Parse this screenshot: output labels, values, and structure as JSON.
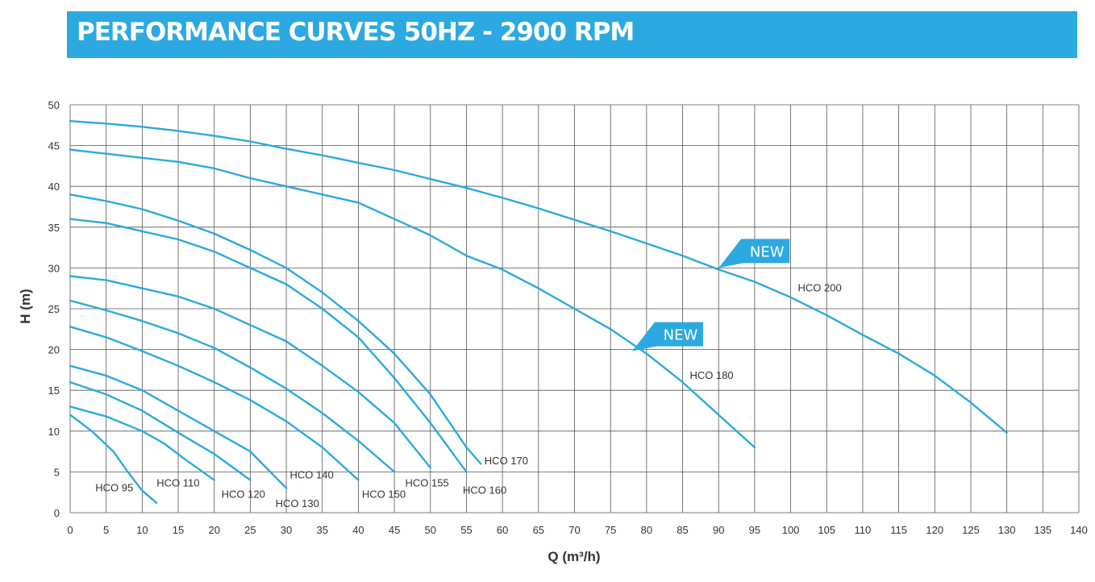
{
  "header": {
    "title": "PERFORMANCE CURVES 50HZ - 2900 RPM"
  },
  "colors": {
    "banner": "#2ca9e1",
    "curve": "#2ca9e1",
    "grid": "#555555"
  },
  "chart_data": {
    "type": "line",
    "title": "PERFORMANCE CURVES 50HZ - 2900 RPM",
    "xlabel": "Q (m³/h)",
    "ylabel": "H (m)",
    "xlim": [
      0,
      140
    ],
    "ylim": [
      0,
      50
    ],
    "xticks": [
      0,
      5,
      10,
      15,
      20,
      25,
      30,
      35,
      40,
      45,
      50,
      55,
      60,
      65,
      70,
      75,
      80,
      85,
      90,
      95,
      100,
      105,
      110,
      115,
      120,
      125,
      130,
      135,
      140
    ],
    "yticks": [
      0,
      5,
      10,
      15,
      20,
      25,
      30,
      35,
      40,
      45,
      50
    ],
    "grid": true,
    "series": [
      {
        "name": "HCO 95",
        "x": [
          0,
          3,
          6,
          8,
          10,
          12
        ],
        "y": [
          12,
          10,
          7.5,
          5,
          2.7,
          1.2
        ]
      },
      {
        "name": "HCO 110",
        "x": [
          0,
          5,
          10,
          13,
          16,
          20
        ],
        "y": [
          13,
          11.8,
          10,
          8.5,
          6.5,
          4
        ]
      },
      {
        "name": "HCO 120",
        "x": [
          0,
          5,
          10,
          15,
          20,
          25
        ],
        "y": [
          16,
          14.5,
          12.5,
          9.8,
          7.2,
          4
        ]
      },
      {
        "name": "HCO 130",
        "x": [
          0,
          5,
          10,
          15,
          20,
          25,
          30
        ],
        "y": [
          18,
          16.8,
          15,
          12.5,
          10,
          7.5,
          3
        ]
      },
      {
        "name": "HCO 140",
        "x": [
          0,
          5,
          10,
          15,
          20,
          25,
          30,
          35,
          40
        ],
        "y": [
          22.8,
          21.5,
          19.8,
          18,
          16,
          13.8,
          11.2,
          8,
          4
        ]
      },
      {
        "name": "HCO 150",
        "x": [
          0,
          5,
          10,
          15,
          20,
          25,
          30,
          35,
          40,
          45
        ],
        "y": [
          26,
          24.8,
          23.5,
          22,
          20.2,
          17.8,
          15.2,
          12.2,
          8.8,
          5
        ]
      },
      {
        "name": "HCO 155",
        "x": [
          0,
          5,
          10,
          15,
          20,
          25,
          30,
          35,
          40,
          45,
          50
        ],
        "y": [
          29,
          28.5,
          27.5,
          26.5,
          25,
          23,
          21,
          18,
          14.8,
          11,
          5.5
        ]
      },
      {
        "name": "HCO 160",
        "x": [
          0,
          5,
          10,
          15,
          20,
          25,
          30,
          35,
          40,
          45,
          50,
          55
        ],
        "y": [
          36,
          35.5,
          34.5,
          33.5,
          32,
          30,
          28,
          25,
          21.5,
          16.5,
          11,
          5
        ]
      },
      {
        "name": "HCO 170",
        "x": [
          0,
          5,
          10,
          15,
          20,
          25,
          30,
          35,
          40,
          45,
          50,
          55,
          57
        ],
        "y": [
          39,
          38.2,
          37.2,
          35.8,
          34.2,
          32.2,
          30,
          27,
          23.5,
          19.5,
          14.5,
          8,
          6
        ]
      },
      {
        "name": "HCO 180",
        "x": [
          0,
          5,
          10,
          15,
          20,
          25,
          30,
          35,
          40,
          45,
          50,
          55,
          60,
          65,
          70,
          75,
          80,
          85,
          90,
          95
        ],
        "y": [
          44.5,
          44,
          43.5,
          43,
          42.2,
          41,
          40,
          39,
          38,
          36,
          34,
          31.5,
          29.8,
          27.5,
          25,
          22.5,
          19.5,
          16,
          12,
          8
        ]
      },
      {
        "name": "HCO 200",
        "x": [
          0,
          5,
          10,
          15,
          20,
          25,
          30,
          35,
          40,
          45,
          50,
          55,
          60,
          65,
          70,
          75,
          80,
          85,
          90,
          95,
          100,
          105,
          110,
          115,
          120,
          125,
          130
        ],
        "y": [
          48,
          47.7,
          47.3,
          46.8,
          46.2,
          45.5,
          44.6,
          43.8,
          42.9,
          42,
          40.9,
          39.8,
          38.6,
          37.3,
          35.9,
          34.5,
          33,
          31.5,
          29.8,
          28.3,
          26.4,
          24.2,
          21.8,
          19.5,
          16.8,
          13.5,
          9.8
        ]
      }
    ],
    "curve_labels": [
      {
        "text": "HCO 95",
        "x": 3.5,
        "y": 3.0
      },
      {
        "text": "HCO 110",
        "x": 12,
        "y": 3.6
      },
      {
        "text": "HCO 120",
        "x": 21,
        "y": 2.2
      },
      {
        "text": "HCO 130",
        "x": 28.5,
        "y": 1.1
      },
      {
        "text": "HCO 140",
        "x": 30.5,
        "y": 4.6
      },
      {
        "text": "HCO 150",
        "x": 40.5,
        "y": 2.2
      },
      {
        "text": "HCO 155",
        "x": 46.5,
        "y": 3.6
      },
      {
        "text": "HCO 160",
        "x": 54.5,
        "y": 2.7
      },
      {
        "text": "HCO 170",
        "x": 57.5,
        "y": 6.3
      },
      {
        "text": "HCO 180",
        "x": 86,
        "y": 16.8
      },
      {
        "text": "HCO 200",
        "x": 101,
        "y": 27.5
      }
    ],
    "annotations": [
      {
        "text": "NEW",
        "x": 90,
        "y": 30
      },
      {
        "text": "NEW",
        "x": 78,
        "y": 19.8
      }
    ]
  }
}
